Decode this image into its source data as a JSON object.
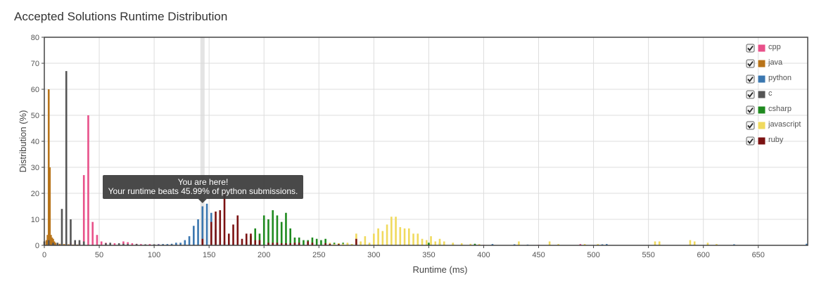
{
  "chart_data": {
    "type": "bar",
    "title": "Accepted Solutions Runtime Distribution",
    "xlabel": "Runtime (ms)",
    "ylabel": "Distribution (%)",
    "xlim": [
      0,
      695
    ],
    "ylim": [
      0,
      80
    ],
    "x_ticks": [
      0,
      50,
      100,
      150,
      200,
      250,
      300,
      350,
      400,
      450,
      500,
      550,
      600,
      650
    ],
    "y_ticks": [
      0,
      10,
      20,
      30,
      40,
      50,
      60,
      70,
      80
    ],
    "grid": true,
    "legend_position": "top-right",
    "highlight_x": 144,
    "tooltip": {
      "line1": "You are here!",
      "line2": "Your runtime beats 45.99% of python submissions."
    },
    "series": [
      {
        "name": "cpp",
        "color": "#e8518a",
        "checked": true,
        "points": [
          [
            4,
            1.5
          ],
          [
            20,
            1
          ],
          [
            24,
            1
          ],
          [
            28,
            1.5
          ],
          [
            32,
            1
          ],
          [
            36,
            27
          ],
          [
            40,
            50
          ],
          [
            44,
            9
          ],
          [
            48,
            4
          ],
          [
            52,
            1.5
          ],
          [
            56,
            1
          ],
          [
            64,
            0.8
          ],
          [
            72,
            1.5
          ],
          [
            76,
            1.2
          ],
          [
            80,
            0.8
          ],
          [
            84,
            0.6
          ],
          [
            88,
            0.5
          ],
          [
            96,
            0.5
          ],
          [
            104,
            0.5
          ],
          [
            112,
            0.4
          ],
          [
            120,
            0.4
          ],
          [
            128,
            0.3
          ],
          [
            136,
            0.3
          ],
          [
            144,
            0.3
          ],
          [
            152,
            0.3
          ],
          [
            160,
            0.3
          ],
          [
            168,
            0.2
          ],
          [
            176,
            0.2
          ],
          [
            184,
            0.2
          ],
          [
            200,
            0.2
          ],
          [
            216,
            0.2
          ],
          [
            232,
            0.2
          ],
          [
            248,
            0.2
          ],
          [
            264,
            0.2
          ],
          [
            280,
            0.2
          ],
          [
            300,
            0.2
          ],
          [
            350,
            0.2
          ],
          [
            400,
            0.2
          ],
          [
            450,
            0.2
          ],
          [
            488,
            0.5
          ]
        ]
      },
      {
        "name": "java",
        "color": "#b8741a",
        "checked": true,
        "points": [
          [
            2,
            2
          ],
          [
            3,
            4
          ],
          [
            4,
            60
          ],
          [
            5,
            30
          ],
          [
            6,
            4
          ],
          [
            7,
            3
          ],
          [
            8,
            2.5
          ],
          [
            9,
            1.5
          ],
          [
            10,
            1
          ],
          [
            12,
            0.8
          ],
          [
            14,
            0.6
          ],
          [
            18,
            0.5
          ],
          [
            22,
            0.4
          ],
          [
            26,
            0.3
          ],
          [
            30,
            0.3
          ],
          [
            40,
            0.2
          ],
          [
            50,
            0.2
          ],
          [
            60,
            0.2
          ],
          [
            80,
            0.2
          ],
          [
            100,
            0.2
          ],
          [
            120,
            0.2
          ],
          [
            140,
            0.2
          ]
        ]
      },
      {
        "name": "python",
        "color": "#3b77b0",
        "checked": true,
        "points": [
          [
            100,
            0.4
          ],
          [
            104,
            0.4
          ],
          [
            108,
            0.5
          ],
          [
            112,
            0.5
          ],
          [
            116,
            0.6
          ],
          [
            120,
            1
          ],
          [
            124,
            1
          ],
          [
            128,
            2
          ],
          [
            132,
            3.5
          ],
          [
            136,
            7.5
          ],
          [
            140,
            10
          ],
          [
            144,
            15
          ],
          [
            148,
            16
          ],
          [
            152,
            12.5
          ],
          [
            156,
            6
          ],
          [
            160,
            3
          ],
          [
            164,
            1.5
          ],
          [
            168,
            1
          ],
          [
            172,
            0.5
          ],
          [
            180,
            0.3
          ],
          [
            190,
            0.3
          ],
          [
            200,
            0.3
          ],
          [
            260,
            0.3
          ],
          [
            300,
            0.2
          ],
          [
            350,
            0.2
          ],
          [
            380,
            0.4
          ],
          [
            392,
            0.3
          ],
          [
            396,
            0.3
          ],
          [
            408,
            0.5
          ],
          [
            428,
            0.4
          ],
          [
            440,
            0.3
          ],
          [
            508,
            0.4
          ],
          [
            512,
            0.5
          ],
          [
            592,
            0.3
          ],
          [
            628,
            0.4
          ],
          [
            694,
            0.6
          ]
        ]
      },
      {
        "name": "c",
        "color": "#555555",
        "checked": true,
        "points": [
          [
            0,
            1.5
          ],
          [
            4,
            2
          ],
          [
            8,
            1
          ],
          [
            12,
            1
          ],
          [
            16,
            14
          ],
          [
            20,
            67
          ],
          [
            24,
            10
          ],
          [
            28,
            2
          ],
          [
            32,
            2
          ],
          [
            36,
            1.5
          ],
          [
            56,
            0.8
          ],
          [
            60,
            1
          ],
          [
            68,
            0.8
          ],
          [
            72,
            0.6
          ],
          [
            76,
            0.5
          ],
          [
            84,
            0.5
          ],
          [
            92,
            0.4
          ],
          [
            100,
            0.4
          ],
          [
            108,
            0.3
          ],
          [
            116,
            0.3
          ],
          [
            124,
            0.3
          ]
        ]
      },
      {
        "name": "csharp",
        "color": "#1f8a1f",
        "checked": true,
        "points": [
          [
            184,
            1
          ],
          [
            188,
            3.5
          ],
          [
            192,
            6.5
          ],
          [
            196,
            4.5
          ],
          [
            200,
            11.5
          ],
          [
            204,
            10
          ],
          [
            208,
            13.5
          ],
          [
            212,
            11.5
          ],
          [
            216,
            9
          ],
          [
            220,
            12.5
          ],
          [
            224,
            6.5
          ],
          [
            228,
            3
          ],
          [
            232,
            3
          ],
          [
            236,
            2
          ],
          [
            240,
            2
          ],
          [
            244,
            3
          ],
          [
            248,
            2.5
          ],
          [
            252,
            2
          ],
          [
            256,
            2.5
          ],
          [
            264,
            1
          ],
          [
            268,
            0.8
          ],
          [
            272,
            1
          ],
          [
            276,
            0.7
          ],
          [
            280,
            0.5
          ],
          [
            296,
            0.5
          ],
          [
            340,
            0.5
          ],
          [
            350,
            1
          ],
          [
            360,
            1
          ],
          [
            372,
            0.8
          ],
          [
            392,
            0.6
          ]
        ]
      },
      {
        "name": "javascript",
        "color": "#f0da5e",
        "checked": true,
        "points": [
          [
            256,
            0.5
          ],
          [
            260,
            1
          ],
          [
            264,
            0.5
          ],
          [
            268,
            0.8
          ],
          [
            272,
            0.6
          ],
          [
            276,
            1
          ],
          [
            280,
            0.5
          ],
          [
            284,
            4.5
          ],
          [
            288,
            1.5
          ],
          [
            292,
            3.5
          ],
          [
            296,
            1
          ],
          [
            300,
            4.5
          ],
          [
            304,
            6.5
          ],
          [
            308,
            5.5
          ],
          [
            312,
            8
          ],
          [
            316,
            11
          ],
          [
            320,
            11
          ],
          [
            324,
            7
          ],
          [
            328,
            6.5
          ],
          [
            332,
            6.5
          ],
          [
            336,
            4.5
          ],
          [
            340,
            4.5
          ],
          [
            344,
            2.5
          ],
          [
            348,
            2
          ],
          [
            352,
            3.5
          ],
          [
            356,
            1.5
          ],
          [
            360,
            2.5
          ],
          [
            364,
            1.5
          ],
          [
            372,
            1
          ],
          [
            380,
            0.8
          ],
          [
            388,
            0.6
          ],
          [
            396,
            0.5
          ],
          [
            432,
            1.5
          ],
          [
            460,
            1.5
          ],
          [
            468,
            0.5
          ],
          [
            492,
            0.5
          ],
          [
            504,
            0.5
          ],
          [
            556,
            1.5
          ],
          [
            560,
            1.5
          ],
          [
            588,
            2
          ],
          [
            592,
            1.5
          ],
          [
            604,
            1
          ],
          [
            612,
            0.5
          ]
        ]
      },
      {
        "name": "ruby",
        "color": "#7b1212",
        "checked": true,
        "points": [
          [
            144,
            2.5
          ],
          [
            152,
            9
          ],
          [
            156,
            13
          ],
          [
            160,
            13.5
          ],
          [
            164,
            21
          ],
          [
            168,
            4.5
          ],
          [
            172,
            8
          ],
          [
            176,
            11.5
          ],
          [
            180,
            2.5
          ],
          [
            184,
            4.5
          ],
          [
            188,
            4.5
          ],
          [
            192,
            2
          ],
          [
            196,
            2
          ],
          [
            204,
            1
          ],
          [
            208,
            1
          ],
          [
            212,
            1
          ],
          [
            216,
            0.8
          ],
          [
            220,
            0.8
          ],
          [
            224,
            0.8
          ],
          [
            228,
            1
          ],
          [
            232,
            1
          ],
          [
            240,
            1.5
          ],
          [
            244,
            1
          ],
          [
            256,
            0.8
          ],
          [
            260,
            0.6
          ],
          [
            268,
            0.5
          ],
          [
            284,
            2.5
          ]
        ]
      }
    ]
  }
}
